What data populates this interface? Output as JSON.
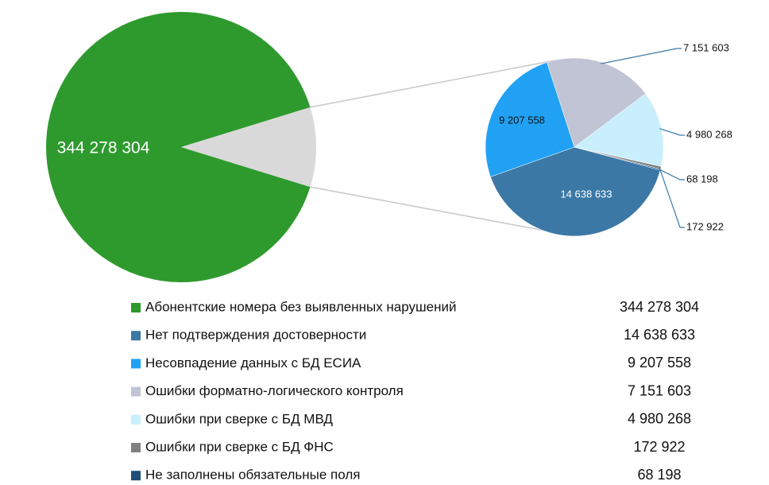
{
  "chart_data": {
    "type": "pie-of-pie",
    "categories": [
      "Абонентские номера без выявленных нарушений",
      "Нет подтверждения достоверности",
      "Несовпадение данных с БД ЕСИА",
      "Ошибки форматно-логического контроля",
      "Ошибки при сверке с БД МВД",
      "Ошибки при сверке с БД ФНС",
      "Не заполнены обязательные поля"
    ],
    "values": [
      344278304,
      14638633,
      9207558,
      7151603,
      4980268,
      172922,
      68198
    ],
    "value_labels": [
      "344 278 304",
      "14 638 633",
      "9 207 558",
      "7 151 603",
      "4 980 268",
      "172 922",
      "68 198"
    ],
    "colors": [
      "#2e9a2e",
      "#3b78a6",
      "#21a1f3",
      "#c0c4d4",
      "#c9eefc",
      "#808080",
      "#1f4e79"
    ],
    "other_color": "#d9d9d9"
  }
}
